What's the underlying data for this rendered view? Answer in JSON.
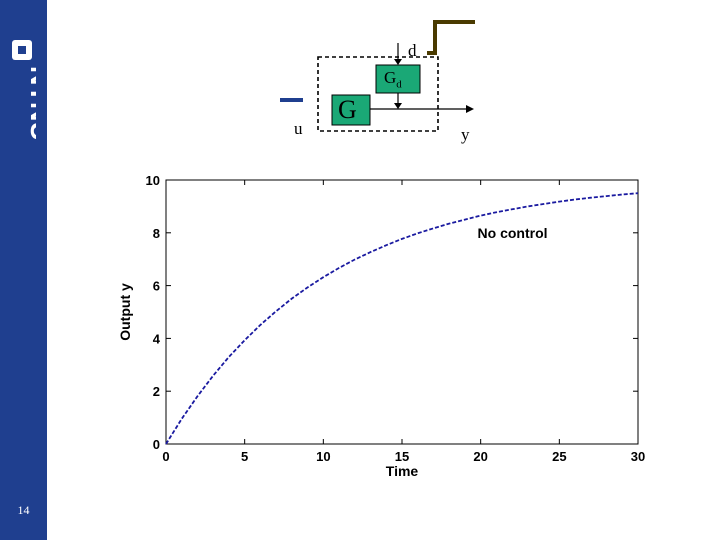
{
  "branding": {
    "logo_text": "NTNU"
  },
  "slide": {
    "number": "14"
  },
  "diagram": {
    "input_label": "u",
    "output_label": "y",
    "disturbance_label": "d",
    "plant_label": "G",
    "disturbance_block_label": "G",
    "disturbance_block_subscript": "d"
  },
  "colors": {
    "sidebar": "#1f3f8f",
    "block_fill": "#1aa876",
    "step_color": "#4a3a00",
    "curve": "#1a1aa0"
  },
  "chart_data": {
    "type": "line",
    "title": "",
    "xlabel": "Time",
    "ylabel": "Output y",
    "xlim": [
      0,
      30
    ],
    "ylim": [
      0,
      10
    ],
    "xticks": [
      0,
      5,
      10,
      15,
      20,
      25,
      30
    ],
    "yticks": [
      0,
      2,
      4,
      6,
      8,
      10
    ],
    "grid": false,
    "annotation": "No control",
    "series": [
      {
        "name": "No control",
        "style": "dashed",
        "x": [
          0,
          1,
          2,
          3,
          4,
          5,
          6,
          7,
          8,
          9,
          10,
          11,
          12,
          13,
          14,
          15,
          16,
          17,
          18,
          19,
          20,
          21,
          22,
          23,
          24,
          25,
          26,
          27,
          28,
          29,
          30
        ],
        "y": [
          0,
          0.95,
          1.81,
          2.59,
          3.3,
          3.93,
          4.51,
          5.03,
          5.51,
          5.93,
          6.32,
          6.67,
          6.99,
          7.27,
          7.53,
          7.77,
          7.98,
          8.17,
          8.35,
          8.5,
          8.65,
          8.78,
          8.89,
          9.0,
          9.09,
          9.18,
          9.26,
          9.33,
          9.39,
          9.45,
          9.5
        ]
      }
    ]
  }
}
